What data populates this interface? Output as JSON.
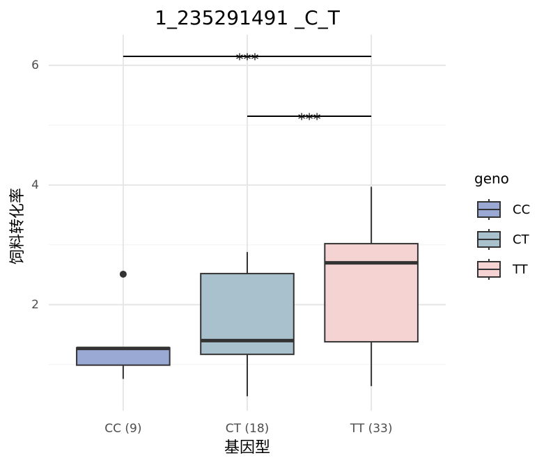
{
  "chart_data": {
    "type": "box",
    "title": "1_235291491 _C_T",
    "x_label": "基因型",
    "y_label": "饲料转化率",
    "categories": [
      "CC (9)",
      "CT (18)",
      "TT (33)"
    ],
    "ylim": [
      0.23,
      6.51
    ],
    "yticks": [
      2,
      4,
      6
    ],
    "y_minor_grid": [
      1,
      3,
      5
    ],
    "grid": true,
    "legend_title": "geno",
    "legend_position": "right",
    "series": [
      {
        "name": "CC",
        "color": "#9aa8d4",
        "whisker_low": 0.76,
        "q1": 0.99,
        "median": 1.27,
        "q3": 1.28,
        "whisker_high": 1.28,
        "outliers": [
          2.51
        ]
      },
      {
        "name": "CT",
        "color": "#a9c0cd",
        "whisker_low": 0.47,
        "q1": 1.17,
        "median": 1.4,
        "q3": 2.52,
        "whisker_high": 2.88,
        "outliers": []
      },
      {
        "name": "TT",
        "color": "#f5d3d3",
        "whisker_low": 0.64,
        "q1": 1.38,
        "median": 2.7,
        "q3": 3.02,
        "whisker_high": 3.97,
        "outliers": []
      }
    ],
    "annotations": [
      {
        "from": "CC (9)",
        "to": "TT (33)",
        "y": 6.15,
        "label": "***"
      },
      {
        "from": "CT (18)",
        "to": "TT (33)",
        "y": 5.15,
        "label": "***"
      }
    ]
  }
}
